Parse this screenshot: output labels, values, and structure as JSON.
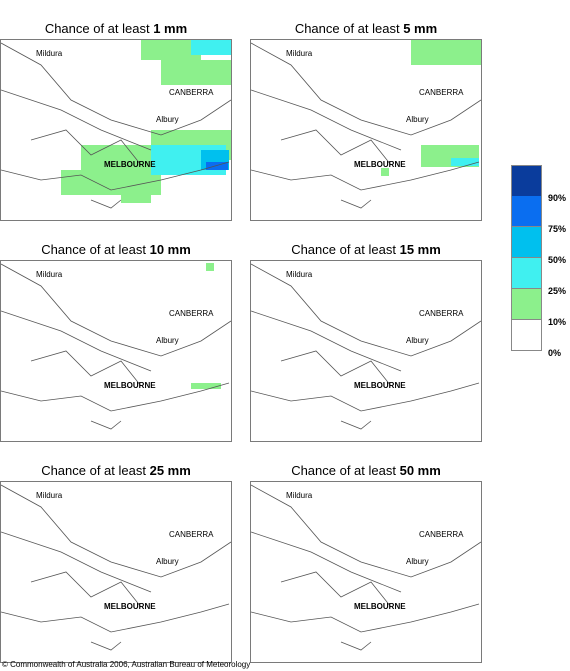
{
  "panels": [
    {
      "prefix": "Chance of at least ",
      "amount": "1 mm"
    },
    {
      "prefix": "Chance of at least ",
      "amount": "5 mm"
    },
    {
      "prefix": "Chance of at least ",
      "amount": "10 mm"
    },
    {
      "prefix": "Chance of at least ",
      "amount": "15 mm"
    },
    {
      "prefix": "Chance of at least ",
      "amount": "25 mm"
    },
    {
      "prefix": "Chance of at least ",
      "amount": "50 mm"
    }
  ],
  "cities": {
    "mildura": "Mildura",
    "canberra": "CANBERRA",
    "albury": "Albury",
    "melbourne": "MELBOURNE"
  },
  "legend": [
    {
      "label": "90%",
      "color": "#0a3c9c"
    },
    {
      "label": "75%",
      "color": "#0a6ef0"
    },
    {
      "label": "50%",
      "color": "#00c0ee"
    },
    {
      "label": "25%",
      "color": "#40f0f0"
    },
    {
      "label": "10%",
      "color": "#8cf08c"
    },
    {
      "label": "0%",
      "color": "#ffffff"
    }
  ],
  "copyright": "© Commonwealth of Australia 2006, Australian Bureau of Meteorology"
}
